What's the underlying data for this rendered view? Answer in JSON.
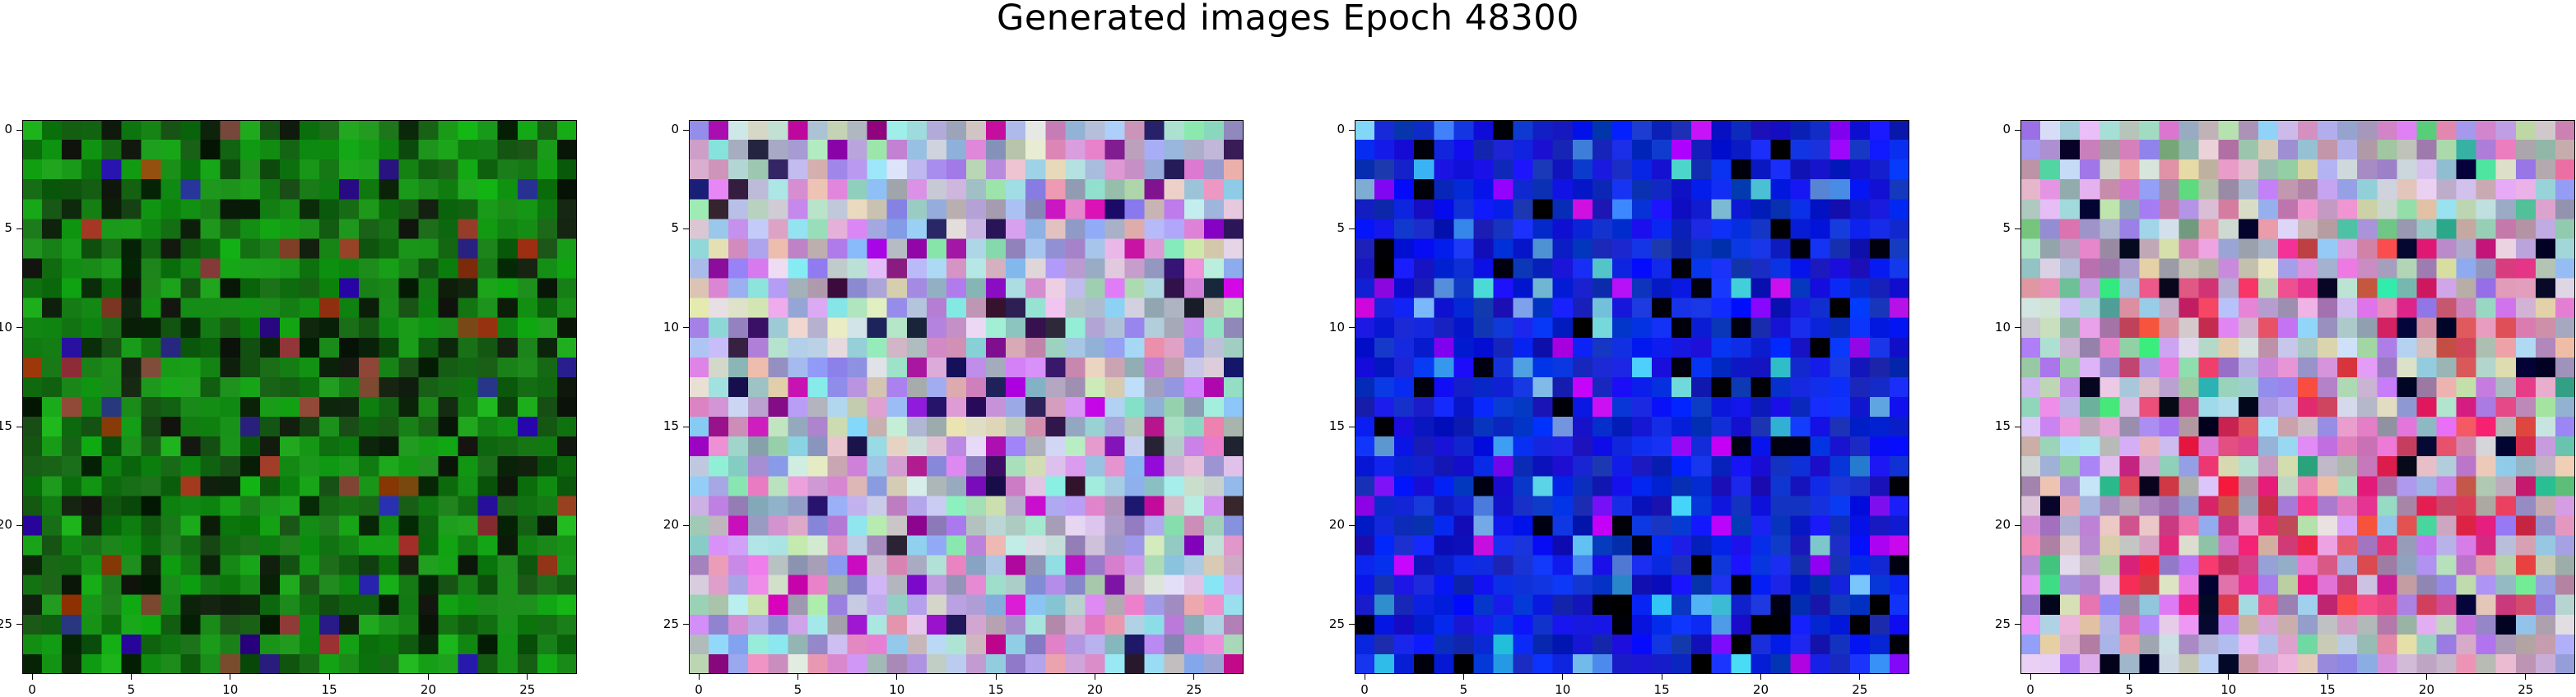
{
  "title": "Generated images Epoch 48300",
  "images": [
    {
      "name": "generated-image-1",
      "tint": "green"
    },
    {
      "name": "generated-image-2",
      "tint": "pastel-mixed"
    },
    {
      "name": "generated-image-3",
      "tint": "blue"
    },
    {
      "name": "generated-image-4",
      "tint": "pink-red-mixed"
    }
  ],
  "axes": {
    "pixels": 28,
    "x_ticks": [
      "0",
      "5",
      "10",
      "15",
      "20",
      "25"
    ],
    "y_ticks": [
      "0",
      "5",
      "10",
      "15",
      "20",
      "25"
    ]
  }
}
